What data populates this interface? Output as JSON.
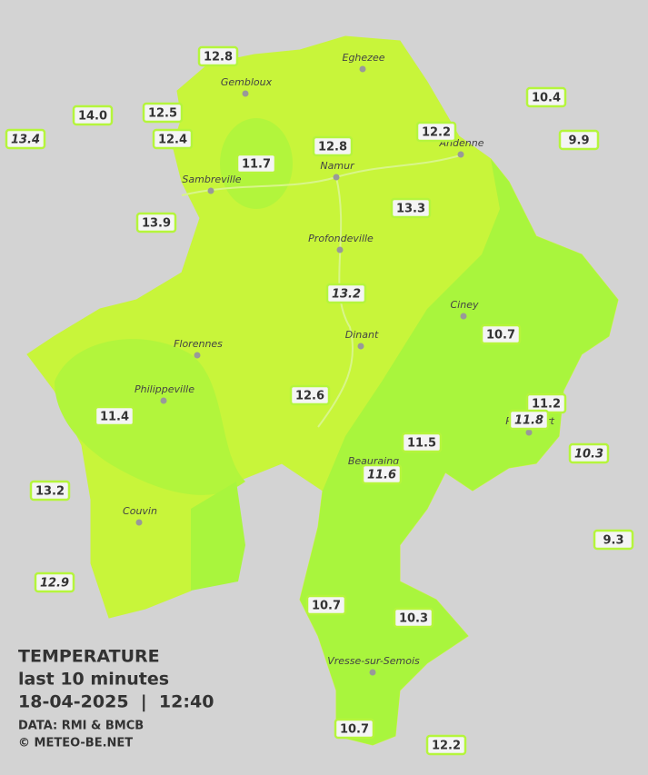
{
  "cities": [
    "Eghezee",
    "Gembloux",
    "Andenne",
    "Namur",
    "Sambreville",
    "Profondeville",
    "Ciney",
    "Dinant",
    "Florennes",
    "Philippeville",
    "Rochefort",
    "Beauraing",
    "Couvin",
    "Vresse-sur-Semois"
  ],
  "stations": [
    {
      "value": "12.8",
      "italic": false
    },
    {
      "value": "14.0",
      "italic": false
    },
    {
      "value": "13.4",
      "italic": true
    },
    {
      "value": "12.5",
      "italic": false
    },
    {
      "value": "12.4",
      "italic": false
    },
    {
      "value": "11.7",
      "italic": false
    },
    {
      "value": "12.8",
      "italic": false
    },
    {
      "value": "12.2",
      "italic": false
    },
    {
      "value": "10.4",
      "italic": false
    },
    {
      "value": "9.9",
      "italic": false
    },
    {
      "value": "13.9",
      "italic": false
    },
    {
      "value": "13.3",
      "italic": false
    },
    {
      "value": "13.2",
      "italic": true
    },
    {
      "value": "10.7",
      "italic": false
    },
    {
      "value": "12.6",
      "italic": false
    },
    {
      "value": "11.4",
      "italic": false
    },
    {
      "value": "11.2",
      "italic": false
    },
    {
      "value": "11.8",
      "italic": true
    },
    {
      "value": "11.5",
      "italic": false
    },
    {
      "value": "11.6",
      "italic": true
    },
    {
      "value": "10.3",
      "italic": true
    },
    {
      "value": "13.2",
      "italic": false
    },
    {
      "value": "9.3",
      "italic": false
    },
    {
      "value": "12.9",
      "italic": true
    },
    {
      "value": "10.7",
      "italic": false
    },
    {
      "value": "10.3",
      "italic": false
    },
    {
      "value": "10.7",
      "italic": false
    },
    {
      "value": "12.2",
      "italic": false
    }
  ],
  "legend": {
    "title": "TEMPERATURE",
    "subtitle": "last 10 minutes",
    "datetime": "18-04-2025  |  12:40",
    "source": "DATA: RMI & BMCB",
    "copyright": "© METEO-BE.NET"
  }
}
